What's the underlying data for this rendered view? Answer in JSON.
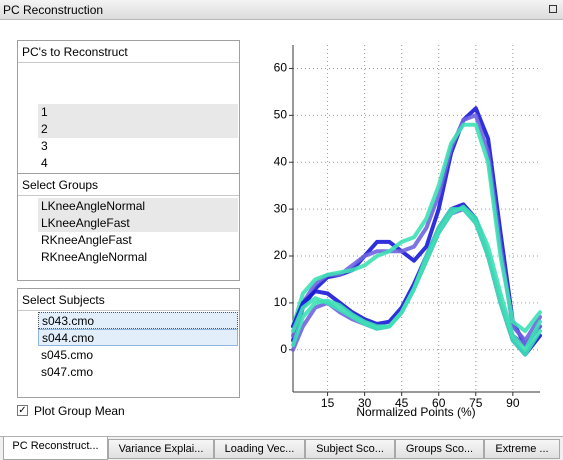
{
  "window": {
    "title": "PC Reconstruction"
  },
  "panels": [
    {
      "title": "PC's to Reconstruct",
      "items": [
        "1",
        "2",
        "3",
        "4"
      ]
    },
    {
      "title": "Select Groups",
      "items": [
        "LKneeAngleNormal",
        "LKneeAngleFast",
        "RKneeAngleFast",
        "RKneeAngleNormal"
      ]
    },
    {
      "title": "Select Subjects",
      "items": [
        "s043.cmo",
        "s044.cmo",
        "s045.cmo",
        "s047.cmo"
      ]
    }
  ],
  "checkbox": {
    "label": "Plot Group Mean"
  },
  "tabs": [
    "PC Reconstruct...",
    "Variance Explai...",
    "Loading Vec...",
    "Subject Sco...",
    "Groups Sco...",
    "Extreme ..."
  ],
  "chart_data": {
    "type": "line",
    "x_label": "Normalized Points (%)",
    "x": [
      1,
      5,
      10,
      15,
      20,
      25,
      30,
      35,
      40,
      45,
      50,
      55,
      60,
      65,
      70,
      75,
      80,
      85,
      90,
      95,
      101
    ],
    "xlim": [
      1,
      101
    ],
    "xticks": [
      15,
      30,
      45,
      60,
      75,
      90
    ],
    "ylim": [
      -9,
      65
    ],
    "yticks": [
      0,
      10,
      20,
      30,
      40,
      50,
      60
    ],
    "grid": true,
    "series": [
      {
        "color": "#1818d8",
        "values": [
          2,
          9,
          13,
          15.5,
          16,
          17,
          20,
          23,
          23,
          21,
          19,
          22,
          30,
          42,
          49,
          51.5,
          45,
          25,
          6,
          1,
          5
        ]
      },
      {
        "color": "#6f64e0",
        "values": [
          3,
          10,
          14,
          16,
          16,
          18,
          20,
          21,
          21,
          21,
          22,
          26,
          33,
          43,
          49,
          50,
          42,
          22,
          5,
          2,
          7
        ]
      },
      {
        "color": "#3ee0b4",
        "values": [
          5,
          12,
          15,
          16,
          16.5,
          17,
          18,
          20,
          21,
          23,
          24,
          28,
          35,
          44,
          48,
          48,
          40,
          20,
          6,
          4,
          8
        ]
      },
      {
        "color": "#1818d8",
        "values": [
          5,
          10,
          12.5,
          12,
          10,
          8,
          6.5,
          5.5,
          6,
          9,
          14,
          20,
          26,
          30,
          31,
          28,
          20,
          10,
          2,
          -1,
          3
        ]
      },
      {
        "color": "#6f64e0",
        "values": [
          0,
          5,
          9,
          10,
          8,
          6.5,
          5.5,
          4.5,
          5,
          8,
          13,
          19,
          25,
          29,
          30,
          27,
          20,
          10,
          3,
          1,
          5
        ]
      },
      {
        "color": "#3ee0b4",
        "values": [
          1,
          7,
          10,
          10.5,
          9.5,
          7.5,
          6,
          5,
          5,
          8,
          13,
          19,
          25,
          29,
          30.5,
          28,
          22,
          12,
          3,
          0,
          6
        ]
      },
      {
        "color": "#3ee0b4",
        "values": [
          4,
          9,
          11,
          10,
          8.5,
          7,
          5.5,
          4.5,
          5,
          8,
          13,
          20,
          26,
          30,
          30,
          27,
          20,
          10,
          2,
          -1,
          4
        ]
      }
    ]
  }
}
